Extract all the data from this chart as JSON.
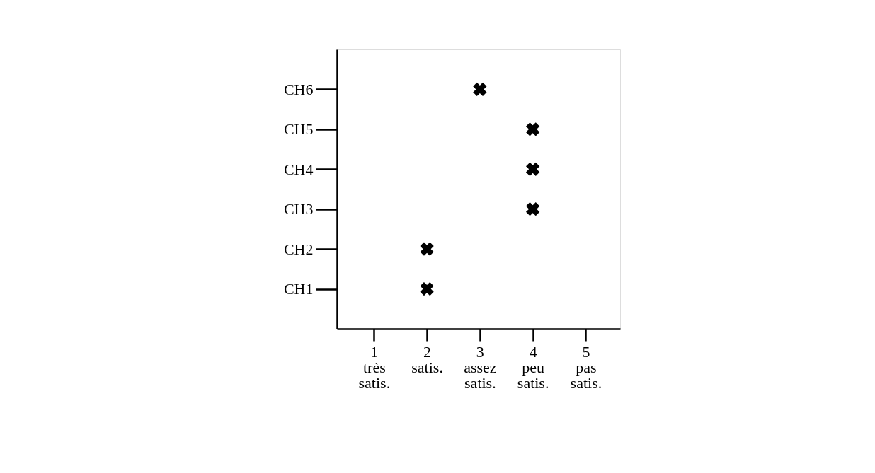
{
  "chart_data": {
    "type": "scatter",
    "orientation": "horizontal",
    "categories": [
      "CH6",
      "CH5",
      "CH4",
      "CH3",
      "CH2",
      "CH1"
    ],
    "values": [
      3,
      4,
      4,
      4,
      2,
      2
    ],
    "color": "#000000",
    "marker": "cross",
    "grid": false,
    "xlim": [
      0.3,
      5.65
    ],
    "xticks": [
      {
        "value": 1,
        "label": "1\ntrès\nsatis."
      },
      {
        "value": 2,
        "label": "2\nsatis."
      },
      {
        "value": 3,
        "label": "3\nassez\nsatis."
      },
      {
        "value": 4,
        "label": "4\npeu\nsatis."
      },
      {
        "value": 5,
        "label": "5\npas\nsatis."
      }
    ]
  }
}
